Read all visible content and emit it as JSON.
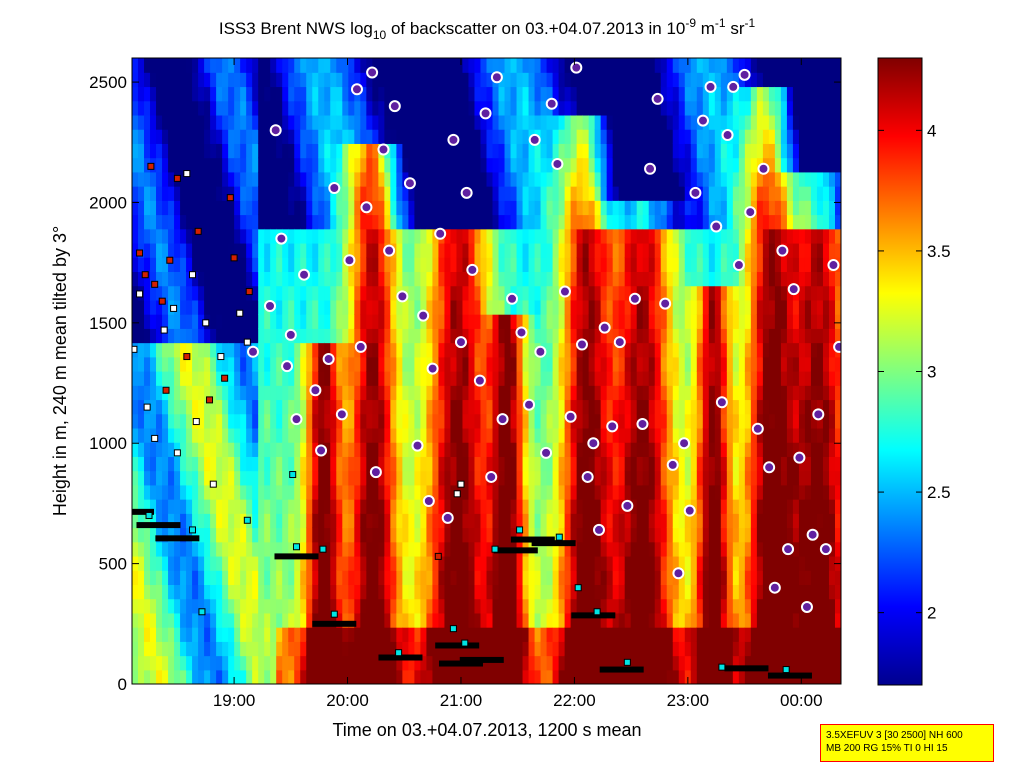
{
  "chart_data": {
    "type": "heatmap",
    "title_parts": [
      "ISS3 Brent NWS log",
      "10",
      " of backscatter on 03.+04.07.2013 in 10",
      "-9",
      " m",
      "-1",
      " sr",
      "-1"
    ],
    "xlabel": "Time on 03.+04.07.2013, 1200 s mean",
    "ylabel": "Height in m, 240 m mean tilted by 3°",
    "xlim": [
      "18:06",
      "00:21"
    ],
    "ylim": [
      0,
      2600
    ],
    "x_ticks": [
      "19:00",
      "20:00",
      "21:00",
      "22:00",
      "23:00",
      "00:00"
    ],
    "y_ticks": [
      "0",
      "500",
      "1000",
      "1500",
      "2000",
      "2500"
    ],
    "colorbar": {
      "range": [
        1.7,
        4.3
      ],
      "ticks": [
        "2",
        "2.5",
        "3",
        "3.5",
        "4"
      ],
      "colormap": "jet"
    },
    "series": [
      {
        "marker": "black-bar",
        "points": [
          {
            "x": "18:06",
            "y": 715
          },
          {
            "x": "18:20",
            "y": 660
          },
          {
            "x": "18:30",
            "y": 605
          },
          {
            "x": "19:33",
            "y": 530
          },
          {
            "x": "19:53",
            "y": 250
          },
          {
            "x": "20:28",
            "y": 110
          },
          {
            "x": "20:58",
            "y": 160
          },
          {
            "x": "21:00",
            "y": 85
          },
          {
            "x": "21:11",
            "y": 100
          },
          {
            "x": "21:29",
            "y": 555
          },
          {
            "x": "21:38",
            "y": 600
          },
          {
            "x": "21:49",
            "y": 585
          },
          {
            "x": "22:10",
            "y": 285
          },
          {
            "x": "22:25",
            "y": 60
          },
          {
            "x": "23:31",
            "y": 65
          },
          {
            "x": "23:54",
            "y": 35
          }
        ]
      },
      {
        "marker": "cyan-square",
        "points": [
          {
            "x": "18:15",
            "y": 700
          },
          {
            "x": "18:38",
            "y": 640
          },
          {
            "x": "18:43",
            "y": 300
          },
          {
            "x": "19:07",
            "y": 680
          },
          {
            "x": "19:31",
            "y": 870
          },
          {
            "x": "19:33",
            "y": 570
          },
          {
            "x": "19:47",
            "y": 560
          },
          {
            "x": "19:53",
            "y": 290
          },
          {
            "x": "20:27",
            "y": 130
          },
          {
            "x": "20:56",
            "y": 230
          },
          {
            "x": "21:02",
            "y": 170
          },
          {
            "x": "21:18",
            "y": 560
          },
          {
            "x": "21:31",
            "y": 640
          },
          {
            "x": "21:52",
            "y": 610
          },
          {
            "x": "22:02",
            "y": 400
          },
          {
            "x": "22:12",
            "y": 300
          },
          {
            "x": "22:28",
            "y": 90
          },
          {
            "x": "23:18",
            "y": 70
          },
          {
            "x": "23:52",
            "y": 60
          }
        ]
      },
      {
        "marker": "white-square",
        "points": [
          {
            "x": "18:07",
            "y": 1390
          },
          {
            "x": "18:10",
            "y": 1620
          },
          {
            "x": "18:14",
            "y": 1150
          },
          {
            "x": "18:18",
            "y": 1020
          },
          {
            "x": "18:23",
            "y": 1470
          },
          {
            "x": "18:28",
            "y": 1560
          },
          {
            "x": "18:30",
            "y": 960
          },
          {
            "x": "18:35",
            "y": 2120
          },
          {
            "x": "18:38",
            "y": 1700
          },
          {
            "x": "18:40",
            "y": 1090
          },
          {
            "x": "18:45",
            "y": 1500
          },
          {
            "x": "18:49",
            "y": 830
          },
          {
            "x": "18:53",
            "y": 1360
          },
          {
            "x": "19:03",
            "y": 1540
          },
          {
            "x": "19:07",
            "y": 1420
          },
          {
            "x": "21:00",
            "y": 830
          },
          {
            "x": "20:58",
            "y": 790
          }
        ]
      },
      {
        "marker": "red-square",
        "points": [
          {
            "x": "18:10",
            "y": 1790
          },
          {
            "x": "18:13",
            "y": 1700
          },
          {
            "x": "18:18",
            "y": 1660
          },
          {
            "x": "18:22",
            "y": 1590
          },
          {
            "x": "18:26",
            "y": 1760
          },
          {
            "x": "18:30",
            "y": 2100
          },
          {
            "x": "18:35",
            "y": 1360
          },
          {
            "x": "18:41",
            "y": 1880
          },
          {
            "x": "18:47",
            "y": 1180
          },
          {
            "x": "18:55",
            "y": 1270
          },
          {
            "x": "19:00",
            "y": 1770
          },
          {
            "x": "19:08",
            "y": 1630
          },
          {
            "x": "18:16",
            "y": 2150
          },
          {
            "x": "18:24",
            "y": 1220
          },
          {
            "x": "20:48",
            "y": 530
          },
          {
            "x": "18:58",
            "y": 2020
          }
        ]
      },
      {
        "marker": "purple-circle",
        "points": [
          {
            "x": "19:10",
            "y": 1380
          },
          {
            "x": "19:19",
            "y": 1570
          },
          {
            "x": "19:22",
            "y": 2300
          },
          {
            "x": "19:25",
            "y": 1850
          },
          {
            "x": "19:28",
            "y": 1320
          },
          {
            "x": "19:30",
            "y": 1450
          },
          {
            "x": "19:33",
            "y": 1100
          },
          {
            "x": "19:37",
            "y": 1700
          },
          {
            "x": "19:43",
            "y": 1220
          },
          {
            "x": "19:46",
            "y": 970
          },
          {
            "x": "19:50",
            "y": 1350
          },
          {
            "x": "19:53",
            "y": 2060
          },
          {
            "x": "19:57",
            "y": 1120
          },
          {
            "x": "20:01",
            "y": 1760
          },
          {
            "x": "20:05",
            "y": 2470
          },
          {
            "x": "20:07",
            "y": 1400
          },
          {
            "x": "20:10",
            "y": 1980
          },
          {
            "x": "20:13",
            "y": 2540
          },
          {
            "x": "20:15",
            "y": 880
          },
          {
            "x": "20:19",
            "y": 2220
          },
          {
            "x": "20:22",
            "y": 1800
          },
          {
            "x": "20:25",
            "y": 2400
          },
          {
            "x": "20:29",
            "y": 1610
          },
          {
            "x": "20:33",
            "y": 2080
          },
          {
            "x": "20:37",
            "y": 990
          },
          {
            "x": "20:40",
            "y": 1530
          },
          {
            "x": "20:43",
            "y": 760
          },
          {
            "x": "20:45",
            "y": 1310
          },
          {
            "x": "20:49",
            "y": 1870
          },
          {
            "x": "20:53",
            "y": 690
          },
          {
            "x": "20:56",
            "y": 2260
          },
          {
            "x": "21:00",
            "y": 1420
          },
          {
            "x": "21:03",
            "y": 2040
          },
          {
            "x": "21:06",
            "y": 1720
          },
          {
            "x": "21:10",
            "y": 1260
          },
          {
            "x": "21:13",
            "y": 2370
          },
          {
            "x": "21:16",
            "y": 860
          },
          {
            "x": "21:19",
            "y": 2520
          },
          {
            "x": "21:22",
            "y": 1100
          },
          {
            "x": "21:27",
            "y": 1600
          },
          {
            "x": "21:32",
            "y": 1460
          },
          {
            "x": "21:36",
            "y": 1160
          },
          {
            "x": "21:39",
            "y": 2260
          },
          {
            "x": "21:42",
            "y": 1380
          },
          {
            "x": "21:45",
            "y": 960
          },
          {
            "x": "21:48",
            "y": 2410
          },
          {
            "x": "21:51",
            "y": 2160
          },
          {
            "x": "21:55",
            "y": 1630
          },
          {
            "x": "21:58",
            "y": 1110
          },
          {
            "x": "22:01",
            "y": 2560
          },
          {
            "x": "22:04",
            "y": 1410
          },
          {
            "x": "22:07",
            "y": 860
          },
          {
            "x": "22:10",
            "y": 1000
          },
          {
            "x": "22:13",
            "y": 640
          },
          {
            "x": "22:16",
            "y": 1480
          },
          {
            "x": "22:20",
            "y": 1070
          },
          {
            "x": "22:24",
            "y": 1420
          },
          {
            "x": "22:28",
            "y": 740
          },
          {
            "x": "22:32",
            "y": 1600
          },
          {
            "x": "22:36",
            "y": 1080
          },
          {
            "x": "22:40",
            "y": 2140
          },
          {
            "x": "22:44",
            "y": 2430
          },
          {
            "x": "22:48",
            "y": 1580
          },
          {
            "x": "22:52",
            "y": 910
          },
          {
            "x": "22:55",
            "y": 460
          },
          {
            "x": "22:58",
            "y": 1000
          },
          {
            "x": "23:01",
            "y": 720
          },
          {
            "x": "23:04",
            "y": 2040
          },
          {
            "x": "23:08",
            "y": 2340
          },
          {
            "x": "23:12",
            "y": 2480
          },
          {
            "x": "23:15",
            "y": 1900
          },
          {
            "x": "23:18",
            "y": 1170
          },
          {
            "x": "23:21",
            "y": 2280
          },
          {
            "x": "23:24",
            "y": 2480
          },
          {
            "x": "23:27",
            "y": 1740
          },
          {
            "x": "23:30",
            "y": 2530
          },
          {
            "x": "23:33",
            "y": 1960
          },
          {
            "x": "23:37",
            "y": 1060
          },
          {
            "x": "23:40",
            "y": 2140
          },
          {
            "x": "23:43",
            "y": 900
          },
          {
            "x": "23:46",
            "y": 400
          },
          {
            "x": "23:50",
            "y": 1800
          },
          {
            "x": "23:53",
            "y": 560
          },
          {
            "x": "23:56",
            "y": 1640
          },
          {
            "x": "23:59",
            "y": 940
          },
          {
            "x": "00:03",
            "y": 320
          },
          {
            "x": "00:06",
            "y": 620
          },
          {
            "x": "00:09",
            "y": 1120
          },
          {
            "x": "00:13",
            "y": 560
          },
          {
            "x": "00:17",
            "y": 1740
          },
          {
            "x": "00:20",
            "y": 1400
          }
        ]
      }
    ]
  },
  "info_box": {
    "line1": "3.5XEFUV 3 [30 2500] NH 600",
    "line2": "MB 200 RG 15% TI 0 HI 15"
  }
}
